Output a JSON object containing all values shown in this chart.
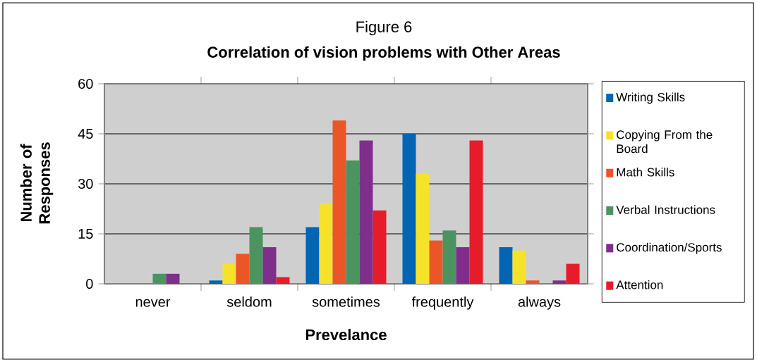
{
  "chart_data": {
    "type": "bar",
    "title": "Figure 6",
    "subtitle": "Correlation of vision problems with Other Areas",
    "xlabel": "Prevelance",
    "ylabel": "Number of Responses",
    "categories": [
      "never",
      "seldom",
      "sometimes",
      "frequently",
      "always"
    ],
    "series": [
      {
        "name": "Writing Skills",
        "color": "#0066b3",
        "values": [
          0,
          1,
          17,
          45,
          11
        ]
      },
      {
        "name": "Copying From the Board",
        "color": "#f7e22a",
        "values": [
          0,
          6,
          24,
          33,
          10
        ]
      },
      {
        "name": "Math Skills",
        "color": "#eb5628",
        "values": [
          0,
          9,
          49,
          13,
          1
        ]
      },
      {
        "name": "Verbal Instructions",
        "color": "#4b9460",
        "values": [
          3,
          17,
          37,
          16,
          0
        ]
      },
      {
        "name": "Coordination/Sports",
        "color": "#7f2f8b",
        "values": [
          3,
          11,
          43,
          11,
          1
        ]
      },
      {
        "name": "Attention",
        "color": "#e61c2a",
        "values": [
          0,
          2,
          22,
          43,
          6
        ]
      }
    ],
    "ylim": [
      0,
      60
    ],
    "yticks": [
      0,
      15,
      30,
      45,
      60
    ],
    "grid": "y",
    "legend": "right"
  }
}
